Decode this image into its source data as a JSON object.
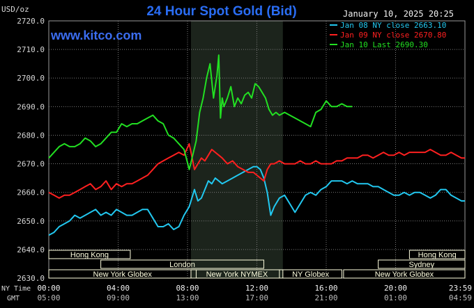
{
  "header": {
    "title": "24 Hour Spot Gold (Bid)",
    "watermark": "www.kitco.com",
    "unit": "USD/oz",
    "datetime": "January 10, 2025 20:25"
  },
  "legend": [
    {
      "label": "Jan 08 NY close 2663.10",
      "color": "#22c8f0"
    },
    {
      "label": "Jan 09 NY close 2670.80",
      "color": "#ff2020"
    },
    {
      "label": "Jan 10 Last 2690.30",
      "color": "#22e022"
    }
  ],
  "sessions": [
    {
      "label": "Hong Kong",
      "start": 0,
      "end": 4.7
    },
    {
      "label": "Hong Kong",
      "start": 20.8,
      "end": 24
    },
    {
      "label": "London",
      "start": 3,
      "end": 12.4
    },
    {
      "label": "Sydney",
      "start": 19,
      "end": 24
    },
    {
      "label": "New York Globex",
      "start": 0,
      "end": 8.5
    },
    {
      "label": "New York NYMEX",
      "start": 8.2,
      "end": 13.5
    },
    {
      "label": "NY Globex",
      "start": 13.3,
      "end": 16.9
    },
    {
      "label": "New York Globex",
      "start": 17,
      "end": 24
    }
  ],
  "axis_labels": {
    "row1": "NY Time",
    "row2": "GMT"
  },
  "colors": {
    "background": "#000000",
    "plot_bg": "#000000",
    "nymex_shade": "#1c241c",
    "grid": "#7a7a7a",
    "session_fill": "#ffffe0"
  },
  "chart_data": {
    "type": "line",
    "title": "24 Hour Spot Gold (Bid)",
    "ylabel": "USD/oz",
    "ylim": [
      2630,
      2720
    ],
    "yticks": [
      "2630.0",
      "2640.0",
      "2650.0",
      "2660.0",
      "2670.0",
      "2680.0",
      "2690.0",
      "2700.0",
      "2710.0",
      "2720.0"
    ],
    "yvalues": [
      2630,
      2640,
      2650,
      2660,
      2670,
      2680,
      2690,
      2700,
      2710,
      2720
    ],
    "xlim": [
      0,
      24
    ],
    "x_ticks_ny": [
      "00:00",
      "04:00",
      "08:00",
      "12:00",
      "16:00",
      "20:00",
      "23:59"
    ],
    "x_ticks_gmt": [
      "05:00",
      "09:00",
      "13:00",
      "17:00",
      "21:00",
      "01:00",
      "04:59"
    ],
    "x_tick_hours": [
      0,
      4,
      8,
      12,
      16,
      20,
      24
    ],
    "nymex_shade_hours": [
      8.2,
      13.5
    ],
    "grid": true,
    "legend_position": "top-right",
    "series": [
      {
        "name": "Jan 08 NY close 2663.10",
        "color": "#22c8f0",
        "x": [
          0,
          0.3,
          0.6,
          0.9,
          1.2,
          1.5,
          1.8,
          2.1,
          2.4,
          2.7,
          3.0,
          3.3,
          3.6,
          3.9,
          4.2,
          4.5,
          4.8,
          5.1,
          5.4,
          5.7,
          6.0,
          6.3,
          6.6,
          6.9,
          7.2,
          7.5,
          7.8,
          8.1,
          8.4,
          8.6,
          8.8,
          9.0,
          9.2,
          9.4,
          9.6,
          9.8,
          10.0,
          10.3,
          10.6,
          10.9,
          11.2,
          11.5,
          11.8,
          12.0,
          12.2,
          12.4,
          12.6,
          12.8,
          13.0,
          13.3,
          13.6,
          13.9,
          14.2,
          14.5,
          14.8,
          15.1,
          15.4,
          15.7,
          16.0,
          16.3,
          16.6,
          16.9,
          17.2,
          17.5,
          17.8,
          18.1,
          18.4,
          18.7,
          19.0,
          19.3,
          19.6,
          19.9,
          20.2,
          20.5,
          20.8,
          21.1,
          21.4,
          21.7,
          22.0,
          22.3,
          22.6,
          22.9,
          23.2,
          23.5,
          23.8,
          24
        ],
        "values": [
          2645,
          2646,
          2648,
          2649,
          2650,
          2652,
          2651,
          2652,
          2653,
          2654,
          2652,
          2653,
          2652,
          2654,
          2653,
          2652,
          2652,
          2653,
          2654,
          2654,
          2651,
          2648,
          2648,
          2649,
          2647,
          2648,
          2652,
          2655,
          2661,
          2657,
          2658,
          2661,
          2664,
          2663,
          2665,
          2664,
          2663,
          2664,
          2665,
          2666,
          2667,
          2668,
          2669,
          2669,
          2668,
          2665,
          2660,
          2652,
          2655,
          2658,
          2659,
          2656,
          2653,
          2656,
          2659,
          2660,
          2659,
          2661,
          2662,
          2664,
          2664,
          2664,
          2663,
          2664,
          2663,
          2663,
          2663,
          2662,
          2662,
          2661,
          2660,
          2659,
          2659,
          2660,
          2659,
          2660,
          2660,
          2659,
          2658,
          2659,
          2661,
          2661,
          2659,
          2658,
          2657,
          2657
        ]
      },
      {
        "name": "Jan 09 NY close 2670.80",
        "color": "#ff2020",
        "x": [
          0,
          0.3,
          0.6,
          0.9,
          1.2,
          1.5,
          1.8,
          2.1,
          2.4,
          2.7,
          3.0,
          3.3,
          3.6,
          3.9,
          4.2,
          4.5,
          4.8,
          5.1,
          5.4,
          5.7,
          6.0,
          6.3,
          6.6,
          6.9,
          7.2,
          7.5,
          7.8,
          8.1,
          8.4,
          8.6,
          8.8,
          9.0,
          9.2,
          9.4,
          9.6,
          9.8,
          10.0,
          10.3,
          10.6,
          10.9,
          11.2,
          11.5,
          11.8,
          12.0,
          12.2,
          12.4,
          12.6,
          12.8,
          13.0,
          13.3,
          13.6,
          13.9,
          14.2,
          14.5,
          14.8,
          15.1,
          15.4,
          15.7,
          16.0,
          16.3,
          16.6,
          16.9,
          17.2,
          17.5,
          17.8,
          18.1,
          18.4,
          18.7,
          19.0,
          19.3,
          19.6,
          19.9,
          20.2,
          20.5,
          20.8,
          21.1,
          21.4,
          21.7,
          22.0,
          22.3,
          22.6,
          22.9,
          23.2,
          23.5,
          23.8,
          24
        ],
        "values": [
          2660,
          2659,
          2658,
          2659,
          2659,
          2660,
          2661,
          2662,
          2663,
          2661,
          2662,
          2664,
          2661,
          2663,
          2662,
          2663,
          2663,
          2664,
          2665,
          2666,
          2668,
          2670,
          2671,
          2672,
          2673,
          2674,
          2673,
          2677,
          2668,
          2670,
          2672,
          2671,
          2673,
          2675,
          2674,
          2673,
          2672,
          2670,
          2671,
          2669,
          2668,
          2667,
          2667,
          2666,
          2665,
          2664,
          2668,
          2670,
          2670,
          2671,
          2670,
          2670,
          2670,
          2671,
          2670,
          2670,
          2671,
          2670,
          2670,
          2670,
          2671,
          2671,
          2672,
          2672,
          2672,
          2673,
          2673,
          2672,
          2673,
          2674,
          2673,
          2673,
          2674,
          2673,
          2674,
          2674,
          2674,
          2674,
          2675,
          2674,
          2673,
          2673,
          2674,
          2673,
          2672,
          2672
        ]
      },
      {
        "name": "Jan 10 Last 2690.30",
        "color": "#22e022",
        "x": [
          0,
          0.3,
          0.6,
          0.9,
          1.2,
          1.5,
          1.8,
          2.1,
          2.4,
          2.7,
          3.0,
          3.3,
          3.6,
          3.9,
          4.2,
          4.5,
          4.8,
          5.1,
          5.4,
          5.7,
          6.0,
          6.3,
          6.6,
          6.9,
          7.2,
          7.5,
          7.8,
          8.1,
          8.3,
          8.5,
          8.7,
          8.9,
          9.1,
          9.3,
          9.5,
          9.7,
          9.8,
          9.9,
          10.0,
          10.1,
          10.3,
          10.5,
          10.7,
          10.9,
          11.1,
          11.3,
          11.5,
          11.7,
          11.9,
          12.1,
          12.3,
          12.5,
          12.7,
          12.9,
          13.1,
          13.3,
          13.6,
          13.9,
          14.2,
          14.5,
          14.8,
          15.1,
          15.4,
          15.7,
          16.0,
          16.3,
          16.6,
          16.9,
          17.2,
          17.5
        ],
        "values": [
          2672,
          2674,
          2676,
          2677,
          2676,
          2676,
          2677,
          2679,
          2678,
          2676,
          2677,
          2679,
          2681,
          2681,
          2684,
          2683,
          2684,
          2684,
          2685,
          2686,
          2687,
          2685,
          2684,
          2680,
          2679,
          2677,
          2675,
          2668,
          2673,
          2678,
          2688,
          2693,
          2700,
          2705,
          2693,
          2701,
          2708,
          2686,
          2693,
          2690,
          2693,
          2697,
          2690,
          2693,
          2691,
          2694,
          2695,
          2693,
          2698,
          2697,
          2695,
          2693,
          2689,
          2687,
          2688,
          2687,
          2688,
          2687,
          2686,
          2685,
          2684,
          2683,
          2688,
          2689,
          2692,
          2690,
          2690,
          2691,
          2690,
          2690
        ]
      }
    ]
  }
}
